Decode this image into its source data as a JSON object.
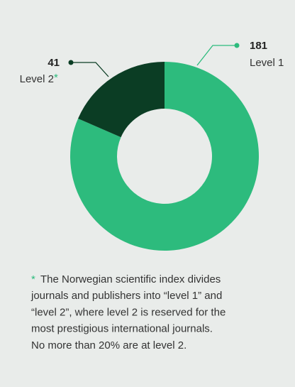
{
  "chart_data": {
    "type": "pie",
    "donut": true,
    "categories": [
      "Level 1",
      "Level 2"
    ],
    "values": [
      181,
      41
    ],
    "colors": [
      "#2dbb7d",
      "#0b3d24"
    ],
    "note_marker": "*",
    "note_lines": [
      "The Norwegian scientific index divides",
      "journals and publishers into “level 1” and",
      "“level 2”, where level 2 is reserved for the",
      "most prestigious international journals.",
      "No more than 20% are at level 2."
    ]
  }
}
